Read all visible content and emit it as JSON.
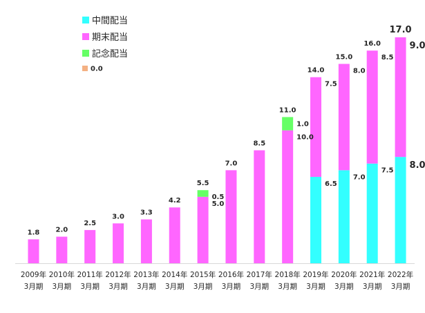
{
  "chart_data": {
    "type": "bar",
    "stacked": true,
    "categories": [
      [
        "2009年",
        "3月期"
      ],
      [
        "2010年",
        "3月期"
      ],
      [
        "2011年",
        "3月期"
      ],
      [
        "2012年",
        "3月期"
      ],
      [
        "2013年",
        "3月期"
      ],
      [
        "2014年",
        "3月期"
      ],
      [
        "2015年",
        "3月期"
      ],
      [
        "2016年",
        "3月期"
      ],
      [
        "2017年",
        "3月期"
      ],
      [
        "2018年",
        "3月期"
      ],
      [
        "2019年",
        "3月期"
      ],
      [
        "2020年",
        "3月期"
      ],
      [
        "2021年",
        "3月期"
      ],
      [
        "2022年",
        "3月期"
      ]
    ],
    "series": [
      {
        "name": "中間配当",
        "color": "#33ffff",
        "values": [
          0,
          0,
          0,
          0,
          0,
          0,
          0,
          0,
          0,
          0,
          6.5,
          7.0,
          7.5,
          8.0
        ]
      },
      {
        "name": "期末配当",
        "color": "#ff66ff",
        "values": [
          1.8,
          2.0,
          2.5,
          3.0,
          3.3,
          4.2,
          5.0,
          7.0,
          8.5,
          10.0,
          7.5,
          8.0,
          8.5,
          9.0
        ]
      },
      {
        "name": "記念配当",
        "color": "#66ff66",
        "values": [
          0,
          0,
          0,
          0,
          0,
          0,
          0.5,
          0,
          0,
          1.0,
          0,
          0,
          0,
          0
        ]
      }
    ],
    "extra_legend": {
      "label": "0.0",
      "color": "#f4b183"
    },
    "totals": [
      "1.8",
      "2.0",
      "2.5",
      "3.0",
      "3.3",
      "4.2",
      "5.5",
      "7.0",
      "8.5",
      "11.0",
      "14.0",
      "15.0",
      "16.0",
      "17.0"
    ],
    "segment_labels": [
      {
        "index": 6,
        "series": 2,
        "text": "0.5"
      },
      {
        "index": 6,
        "series": 1,
        "text": "5.0"
      },
      {
        "index": 9,
        "series": 2,
        "text": "1.0"
      },
      {
        "index": 9,
        "series": 1,
        "text": "10.0"
      },
      {
        "index": 10,
        "series": 1,
        "text": "7.5"
      },
      {
        "index": 10,
        "series": 0,
        "text": "6.5"
      },
      {
        "index": 11,
        "series": 1,
        "text": "8.0"
      },
      {
        "index": 11,
        "series": 0,
        "text": "7.0"
      },
      {
        "index": 12,
        "series": 1,
        "text": "8.5"
      },
      {
        "index": 12,
        "series": 0,
        "text": "7.5"
      },
      {
        "index": 13,
        "series": 1,
        "text": "9.0"
      },
      {
        "index": 13,
        "series": 0,
        "text": "8.0"
      }
    ],
    "ylim": [
      0,
      17
    ],
    "title": "",
    "xlabel": "",
    "ylabel": "",
    "grid": false,
    "legend_position": "top-left"
  }
}
